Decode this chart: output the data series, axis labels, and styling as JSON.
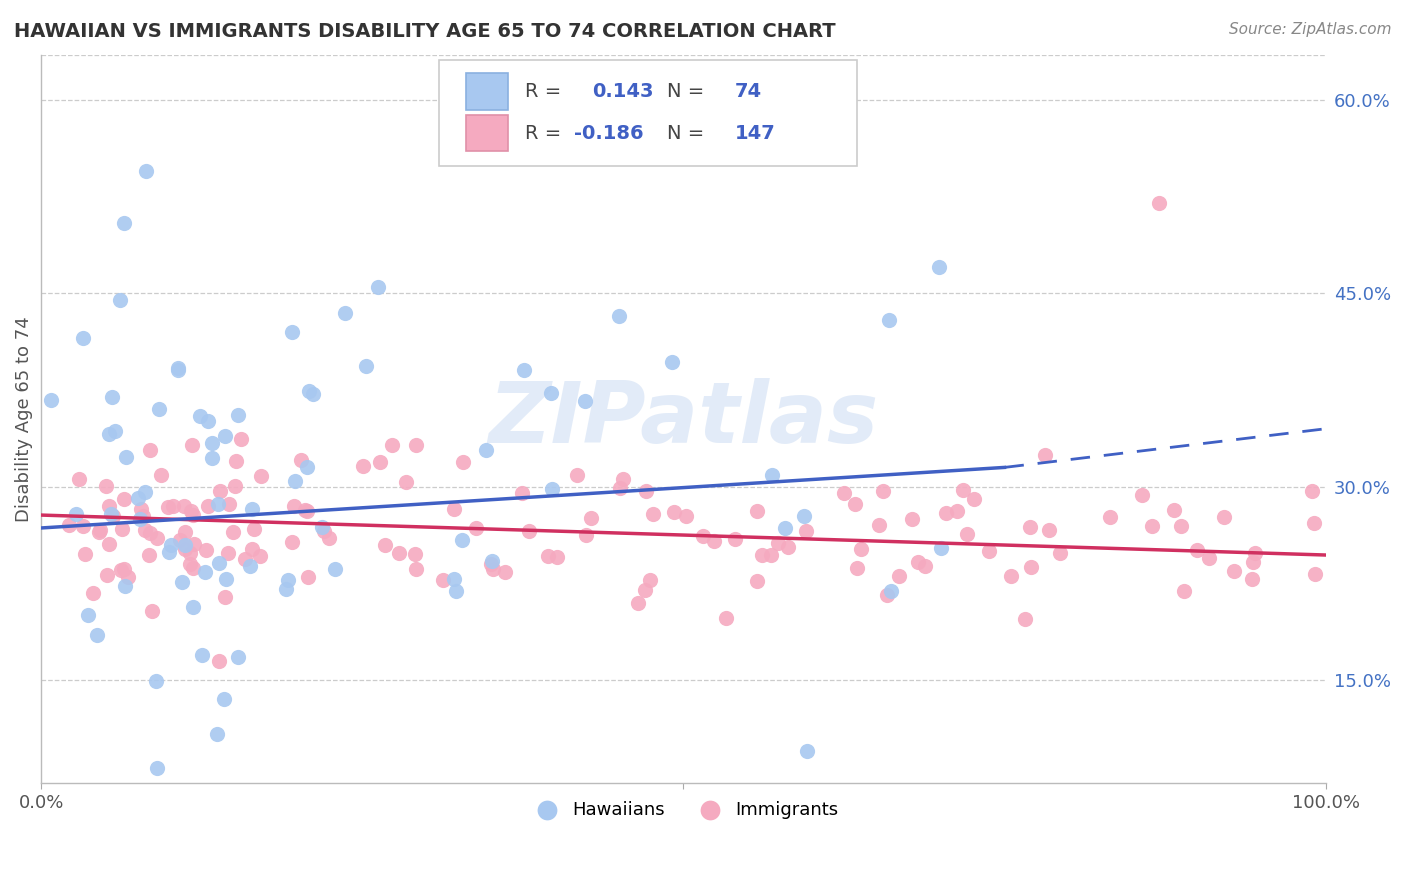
{
  "title": "HAWAIIAN VS IMMIGRANTS DISABILITY AGE 65 TO 74 CORRELATION CHART",
  "source": "Source: ZipAtlas.com",
  "ylabel": "Disability Age 65 to 74",
  "xlim": [
    0.0,
    1.0
  ],
  "ylim": [
    0.07,
    0.635
  ],
  "yticks": [
    0.15,
    0.3,
    0.45,
    0.6
  ],
  "ytick_labels": [
    "15.0%",
    "30.0%",
    "45.0%",
    "60.0%"
  ],
  "grid_color": "#cccccc",
  "hawaiian_fill": "#a8c8f0",
  "immigrant_fill": "#f5aac0",
  "blue_line_color": "#4060c4",
  "pink_line_color": "#d03060",
  "R_hawaiian": 0.143,
  "N_hawaiian": 74,
  "R_immigrant": -0.186,
  "N_immigrant": 147,
  "watermark": "ZIPatlas",
  "title_fontsize": 14,
  "tick_fontsize": 13,
  "legend_fontsize": 14,
  "blue_line_start_y": 0.268,
  "blue_line_end_y_solid": 0.315,
  "blue_line_end_y_dash": 0.345,
  "pink_line_start_y": 0.278,
  "pink_line_end_y": 0.247
}
